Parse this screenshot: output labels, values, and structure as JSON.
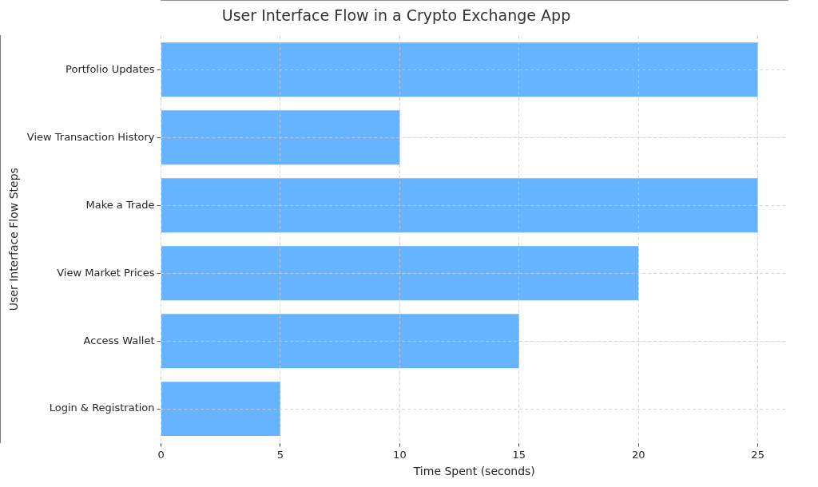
{
  "chart_data": {
    "type": "bar",
    "orientation": "horizontal",
    "title": "User Interface Flow in a Crypto Exchange App",
    "x_label": "Time Spent (seconds)",
    "y_label": "User Interface Flow Steps",
    "categories": [
      "Login & Registration",
      "Access Wallet",
      "View Market Prices",
      "Make a Trade",
      "View Transaction History",
      "Portfolio Updates"
    ],
    "values": [
      5,
      15,
      20,
      25,
      10,
      25
    ],
    "color": "#66b3ff",
    "xlim": [
      0,
      26.25
    ],
    "xticks": [
      0,
      5,
      10,
      15,
      20,
      25
    ],
    "grid": true
  }
}
